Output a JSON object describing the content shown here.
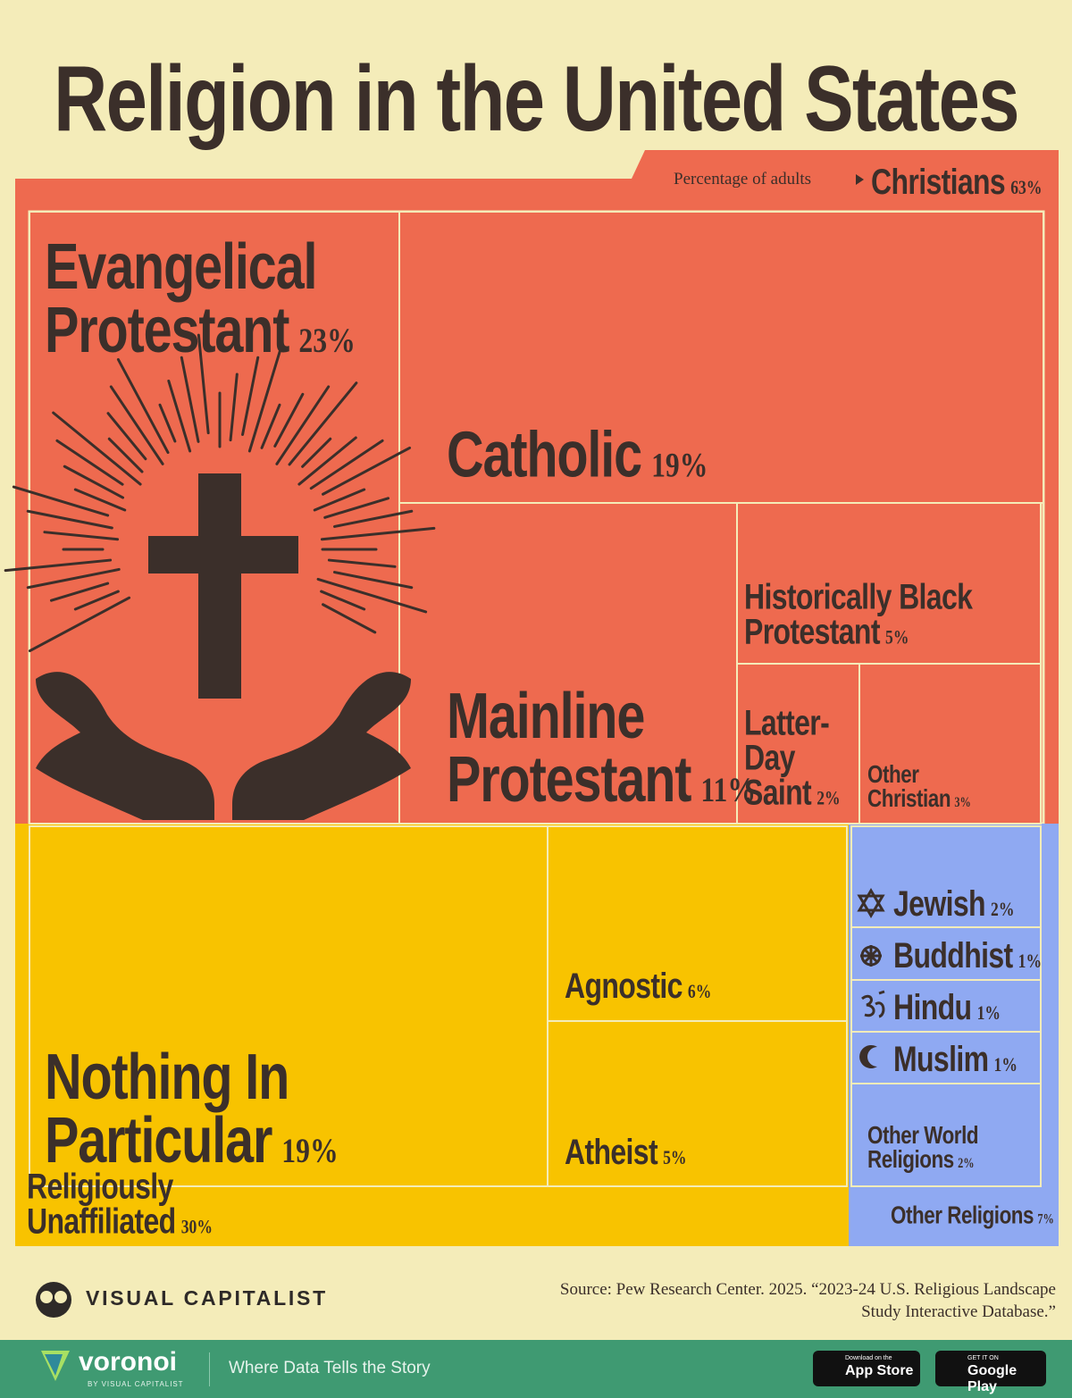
{
  "chart_data": {
    "type": "treemap",
    "title": "Religion in the United States",
    "subtitle": "Percentage of adults",
    "groups": [
      {
        "name": "Christians",
        "value": 63,
        "value_label": "63%",
        "color": "#ee6a4f",
        "categories": [
          "Evangelical Protestant",
          "Catholic",
          "Mainline Protestant",
          "Historically Black Protestant",
          "Latter-Day Saint",
          "Other Christian"
        ],
        "values": [
          23,
          19,
          11,
          5,
          2,
          3
        ],
        "value_labels": [
          "23%",
          "19%",
          "11%",
          "5%",
          "2%",
          "3%"
        ]
      },
      {
        "name": "Religiously Unaffiliated",
        "value": 30,
        "value_label": "30%",
        "color": "#f8c300",
        "categories": [
          "Nothing In Particular",
          "Agnostic",
          "Atheist"
        ],
        "values": [
          19,
          6,
          5
        ],
        "value_labels": [
          "19%",
          "6%",
          "5%"
        ]
      },
      {
        "name": "Other Religions",
        "value": 7,
        "value_label": "7%",
        "color": "#8fa9f2",
        "categories": [
          "Jewish",
          "Buddhist",
          "Hindu",
          "Muslim",
          "Other World Religions"
        ],
        "values": [
          2,
          1,
          1,
          1,
          2
        ],
        "value_labels": [
          "2%",
          "1%",
          "1%",
          "1%",
          "2%"
        ]
      }
    ]
  },
  "brand": "VISUAL CAPITALIST",
  "source": "Source: Pew Research Center. 2025. “2023-24 U.S. Religious Landscape Study Interactive Database.”",
  "footer": {
    "logo": "voronoi",
    "logo_sub": "BY VISUAL CAPITALIST",
    "tagline": "Where Data Tells the Story",
    "badges": [
      {
        "small": "Download on the",
        "big": "App Store"
      },
      {
        "small": "GET IT ON",
        "big": "Google Play"
      }
    ]
  }
}
